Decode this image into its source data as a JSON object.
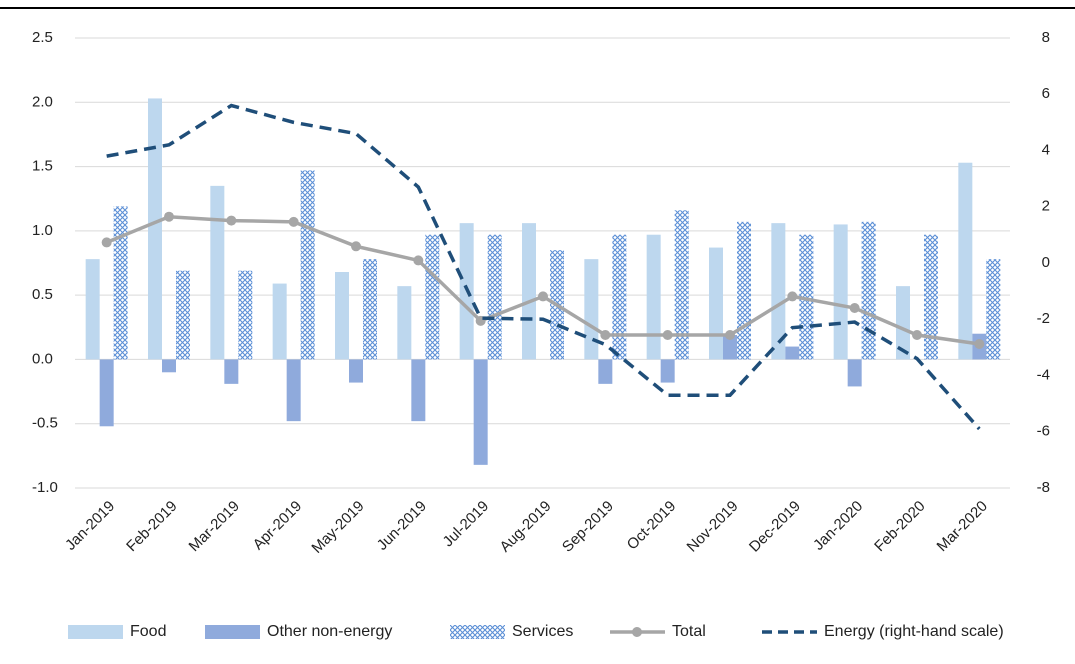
{
  "chart_data": {
    "type": "bar-line",
    "categories": [
      "Jan-2019",
      "Feb-2019",
      "Mar-2019",
      "Apr-2019",
      "May-2019",
      "Jun-2019",
      "Jul-2019",
      "Aug-2019",
      "Sep-2019",
      "Oct-2019",
      "Nov-2019",
      "Dec-2019",
      "Jan-2020",
      "Feb-2020",
      "Mar-2020"
    ],
    "series": [
      {
        "name": "Food",
        "type": "bar",
        "color": "#bdd7ee",
        "values": [
          0.78,
          2.03,
          1.35,
          0.59,
          0.68,
          0.57,
          1.06,
          1.06,
          0.78,
          0.97,
          0.87,
          1.06,
          1.05,
          0.57,
          1.53
        ]
      },
      {
        "name": "Other non-energy",
        "type": "bar",
        "color": "#8faadc",
        "values": [
          -0.52,
          -0.1,
          -0.19,
          -0.48,
          -0.18,
          -0.48,
          -0.82,
          0,
          -0.19,
          -0.18,
          0.19,
          0.1,
          -0.21,
          0,
          0.2
        ]
      },
      {
        "name": "Services",
        "type": "bar",
        "pattern": "crosshatch",
        "color": "#5b8fd6",
        "values": [
          1.19,
          0.69,
          0.69,
          1.47,
          0.78,
          0.97,
          0.97,
          0.85,
          0.97,
          1.16,
          1.07,
          0.97,
          1.07,
          0.97,
          0.78
        ]
      },
      {
        "name": "Total",
        "type": "line",
        "color": "#a6a6a6",
        "values": [
          0.91,
          1.11,
          1.08,
          1.07,
          0.88,
          0.77,
          0.3,
          0.49,
          0.19,
          0.19,
          0.19,
          0.49,
          0.4,
          0.19,
          0.12
        ]
      },
      {
        "name": "Energy (right-hand scale)",
        "type": "line",
        "dashed": true,
        "axis": "y2",
        "color": "#1f4e79",
        "values": [
          3.8,
          4.2,
          5.6,
          5.0,
          4.6,
          2.7,
          -1.96,
          -2.0,
          -2.9,
          -4.7,
          -4.7,
          -2.3,
          -2.1,
          -3.4,
          -5.9
        ]
      }
    ],
    "ylim": [
      -1.0,
      2.5
    ],
    "yticks": [
      {
        "value": -1,
        "label": "-1.0"
      },
      -0.5,
      {
        "value": 0,
        "label": "0.0"
      },
      0.5,
      {
        "value": 1,
        "label": "1.0"
      },
      1.5,
      {
        "value": 2,
        "label": "2.0"
      },
      2.5
    ],
    "y2lim": [
      -8,
      8
    ],
    "y2ticks": [
      -8,
      -6,
      -4,
      -2,
      0,
      2,
      4,
      6,
      8
    ],
    "grid": true,
    "legend": "bottom"
  }
}
